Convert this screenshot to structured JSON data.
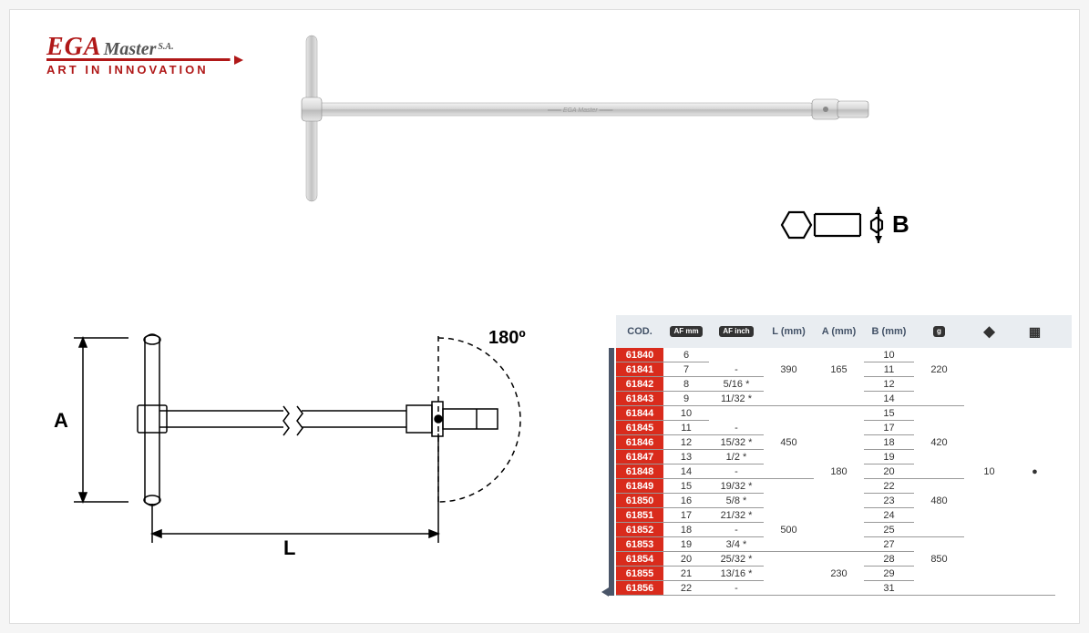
{
  "brand": {
    "name_part1": "EGA",
    "name_part2": "Master",
    "suffix": "S.A.",
    "tagline": "ART IN INNOVATION",
    "brand_color": "#b01818"
  },
  "diagram": {
    "angle_label": "180º",
    "dim_A": "A",
    "dim_L": "L",
    "callout_B": "B"
  },
  "table": {
    "header": {
      "cod": "COD.",
      "af_mm_icon": "AF mm",
      "af_inch_icon": "AF inch",
      "L": "L (mm)",
      "A": "A (mm)",
      "B": "B (mm)",
      "weight_icon": "g",
      "box_icon": "◆",
      "pack_icon": "▦"
    },
    "colors": {
      "header_bg": "#e9edf1",
      "code_bg": "#d92b1c",
      "text": "#333333",
      "border": "#999999",
      "sidebar": "#4a5568"
    },
    "bullet": "●",
    "rows": [
      {
        "cod": "61840",
        "mm": "6",
        "inch": "",
        "L": "",
        "A": "",
        "B": "10",
        "W": "",
        "box": "",
        "inch_bb": false,
        "L_bb": false,
        "A_bb": false,
        "W_bb": false
      },
      {
        "cod": "61841",
        "mm": "7",
        "inch": "-",
        "L": "390",
        "A": "165",
        "B": "11",
        "W": "220",
        "box": "",
        "inch_bb": true,
        "L_bb": false,
        "A_bb": false,
        "W_bb": false
      },
      {
        "cod": "61842",
        "mm": "8",
        "inch": "5/16 *",
        "L": "",
        "A": "",
        "B": "12",
        "W": "",
        "box": "",
        "inch_bb": true,
        "L_bb": false,
        "A_bb": false,
        "W_bb": false
      },
      {
        "cod": "61843",
        "mm": "9",
        "inch": "11/32 *",
        "L": "",
        "A": "",
        "B": "14",
        "W": "",
        "box": "",
        "inch_bb": true,
        "L_bb": true,
        "A_bb": true,
        "W_bb": true
      },
      {
        "cod": "61844",
        "mm": "10",
        "inch": "",
        "L": "",
        "A": "",
        "B": "15",
        "W": "",
        "box": "",
        "inch_bb": false,
        "L_bb": false,
        "A_bb": false,
        "W_bb": false
      },
      {
        "cod": "61845",
        "mm": "11",
        "inch": "-",
        "L": "",
        "A": "",
        "B": "17",
        "W": "",
        "box": "",
        "inch_bb": true,
        "L_bb": false,
        "A_bb": false,
        "W_bb": false
      },
      {
        "cod": "61846",
        "mm": "12",
        "inch": "15/32 *",
        "L": "450",
        "A": "",
        "B": "18",
        "W": "420",
        "box": "",
        "inch_bb": true,
        "L_bb": false,
        "A_bb": false,
        "W_bb": false
      },
      {
        "cod": "61847",
        "mm": "13",
        "inch": "1/2 *",
        "L": "",
        "A": "",
        "B": "19",
        "W": "",
        "box": "",
        "inch_bb": true,
        "L_bb": false,
        "A_bb": false,
        "W_bb": false
      },
      {
        "cod": "61848",
        "mm": "14",
        "inch": "-",
        "L": "",
        "A": "180",
        "B": "20",
        "W": "",
        "box": "10",
        "pack": "●",
        "inch_bb": true,
        "L_bb": true,
        "A_bb": false,
        "W_bb": true
      },
      {
        "cod": "61849",
        "mm": "15",
        "inch": "19/32 *",
        "L": "",
        "A": "",
        "B": "22",
        "W": "",
        "box": "",
        "inch_bb": true,
        "L_bb": false,
        "A_bb": false,
        "W_bb": false
      },
      {
        "cod": "61850",
        "mm": "16",
        "inch": "5/8 *",
        "L": "",
        "A": "",
        "B": "23",
        "W": "480",
        "box": "",
        "inch_bb": true,
        "L_bb": false,
        "A_bb": false,
        "W_bb": false
      },
      {
        "cod": "61851",
        "mm": "17",
        "inch": "21/32 *",
        "L": "",
        "A": "",
        "B": "24",
        "W": "",
        "box": "",
        "inch_bb": true,
        "L_bb": false,
        "A_bb": false,
        "W_bb": false
      },
      {
        "cod": "61852",
        "mm": "18",
        "inch": "-",
        "L": "500",
        "A": "",
        "B": "25",
        "W": "",
        "box": "",
        "inch_bb": true,
        "L_bb": false,
        "A_bb": false,
        "W_bb": true
      },
      {
        "cod": "61853",
        "mm": "19",
        "inch": "3/4 *",
        "L": "",
        "A": "",
        "B": "27",
        "W": "",
        "box": "",
        "inch_bb": true,
        "L_bb": true,
        "A_bb": true,
        "W_bb": false
      },
      {
        "cod": "61854",
        "mm": "20",
        "inch": "25/32 *",
        "L": "",
        "A": "",
        "B": "28",
        "W": "850",
        "box": "",
        "inch_bb": true,
        "L_bb": false,
        "A_bb": false,
        "W_bb": false
      },
      {
        "cod": "61855",
        "mm": "21",
        "inch": "13/16 *",
        "L": "",
        "A": "230",
        "B": "29",
        "W": "",
        "box": "",
        "inch_bb": true,
        "L_bb": false,
        "A_bb": false,
        "W_bb": false
      },
      {
        "cod": "61856",
        "mm": "22",
        "inch": "-",
        "L": "",
        "A": "",
        "B": "31",
        "W": "",
        "box": "",
        "inch_bb": true,
        "L_bb": true,
        "A_bb": true,
        "W_bb": true
      }
    ]
  }
}
